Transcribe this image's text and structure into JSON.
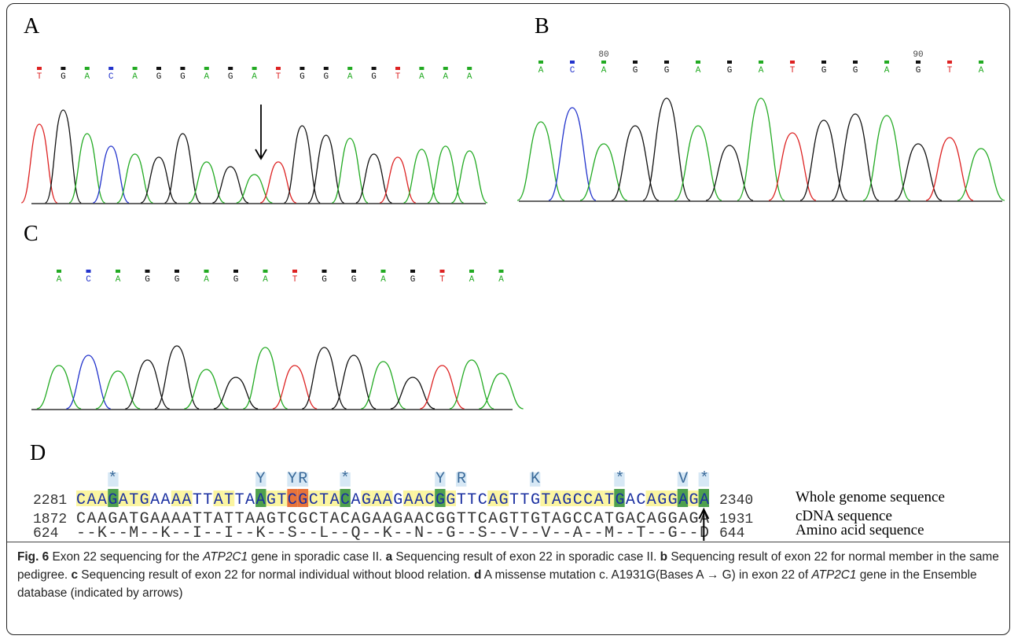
{
  "panels": [
    {
      "label": "A",
      "bases": [
        "T",
        "G",
        "A",
        "C",
        "A",
        "G",
        "G",
        "A",
        "G",
        "A",
        "T",
        "G",
        "G",
        "A",
        "G",
        "T",
        "A",
        "A",
        "A"
      ]
    },
    {
      "label": "B",
      "bases": [
        "A",
        "C",
        "A",
        "G",
        "G",
        "A",
        "G",
        "A",
        "T",
        "G",
        "G",
        "A",
        "G",
        "T",
        "A"
      ],
      "ticks": [
        80,
        90
      ]
    },
    {
      "label": "C",
      "bases": [
        "A",
        "C",
        "A",
        "G",
        "G",
        "A",
        "G",
        "A",
        "T",
        "G",
        "G",
        "A",
        "G",
        "T",
        "A",
        "A"
      ]
    }
  ],
  "alignment": {
    "label": "D",
    "markers": "   *             Y  YR   *        Y R      K       *     V *",
    "rows": [
      {
        "start": 2281,
        "sequence": "CAAGATGAAAATTATTAAGTCGCTACAGAAGAACGGTTCAGTTGTAGCCATGACAGGAGA",
        "end": 2340,
        "name": "Whole genome sequence"
      },
      {
        "start": 1872,
        "sequence": "CAAGATGAAAATTATTAAGTCGCTACAGAAGAACGGTTCAGTTGTAGCCATGACAGGAGA",
        "end": 1931,
        "name": "cDNA sequence"
      },
      {
        "start": 624,
        "sequence": "--K--M--K--I--I--K--S--L--Q--K--N--G--S--V--V--A--M--T--G--D",
        "end": 644,
        "name": "Amino acid sequence"
      }
    ]
  },
  "caption": [
    {
      "text": "Fig. 6",
      "style": "bold"
    },
    {
      "text": " Exon 22 sequencing for the ",
      "style": "normal"
    },
    {
      "text": "ATP2C1",
      "style": "italic"
    },
    {
      "text": " gene in sporadic case II. ",
      "style": "normal"
    },
    {
      "text": "a",
      "style": "bold"
    },
    {
      "text": " Sequencing result of exon 22 in sporadic case II. ",
      "style": "normal"
    },
    {
      "text": "b",
      "style": "bold"
    },
    {
      "text": " Sequencing result of exon 22 for normal member in the same pedigree. ",
      "style": "normal"
    },
    {
      "text": "c",
      "style": "bold"
    },
    {
      "text": " Sequencing result of exon 22 for normal individual without blood relation. ",
      "style": "normal"
    },
    {
      "text": "d",
      "style": "bold"
    },
    {
      "text": " A missense mutation c. A1931G(Bases A → G) in exon 22 of ",
      "style": "normal"
    },
    {
      "text": "ATP2C1",
      "style": "italic"
    },
    {
      "text": " gene in the Ensemble database (indicated by arrows)",
      "style": "normal"
    }
  ]
}
